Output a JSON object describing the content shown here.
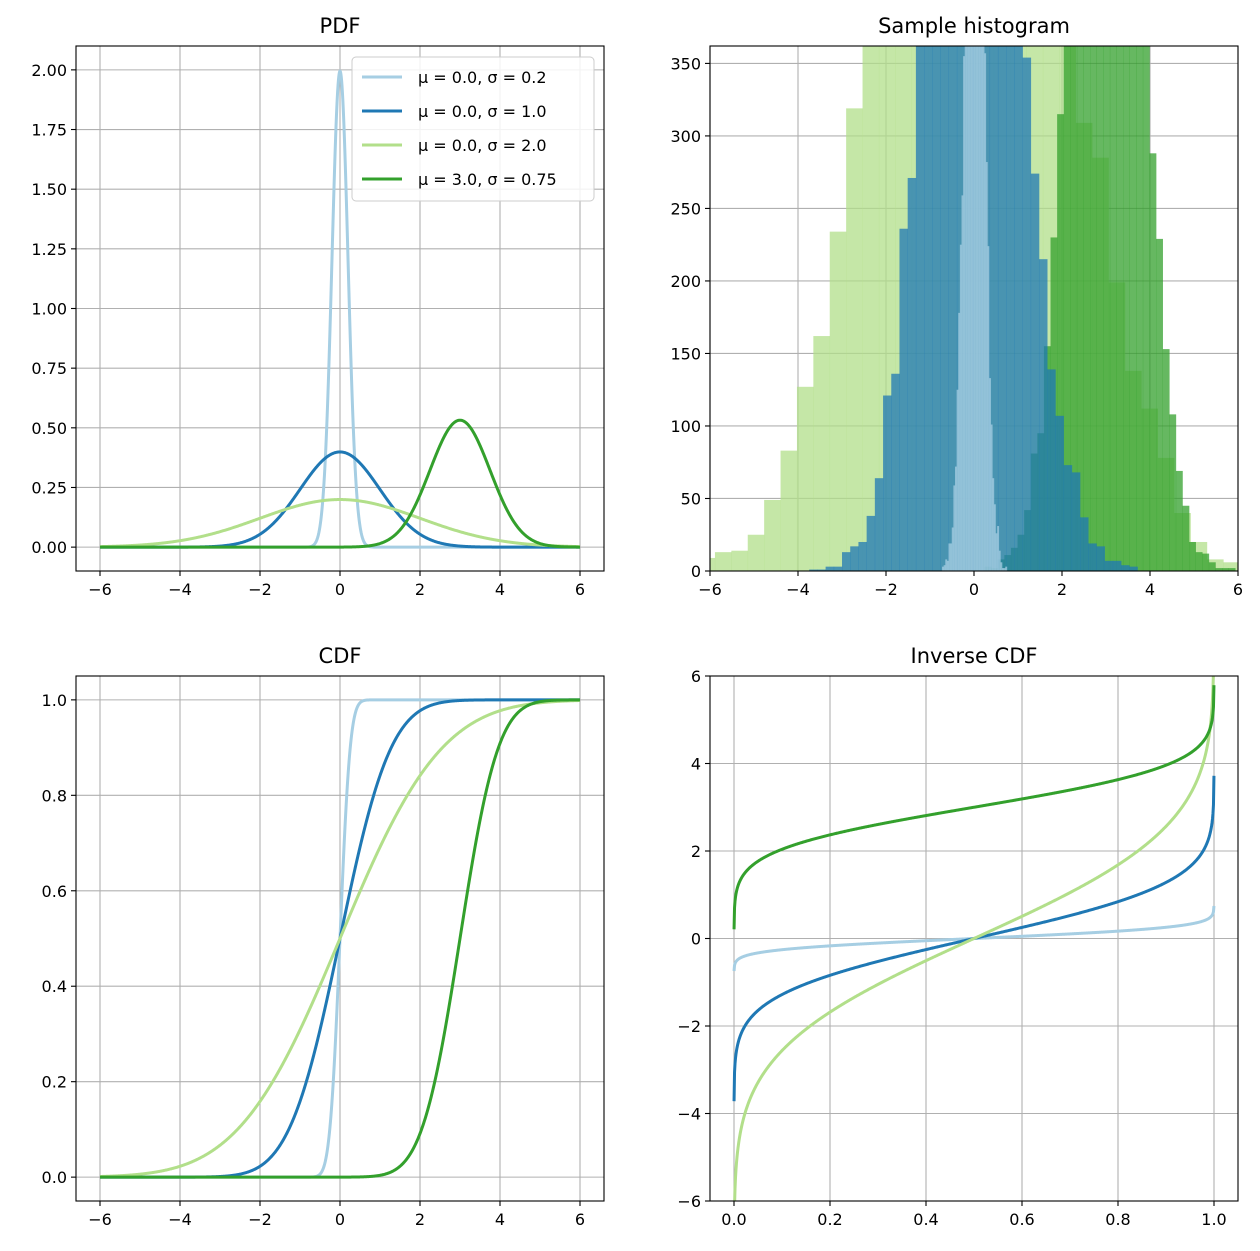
{
  "figure": {
    "background": "#ffffff"
  },
  "chart_data": [
    {
      "id": "pdf",
      "type": "line",
      "title": "PDF",
      "xlabel": "",
      "ylabel": "",
      "xlim": [
        -6.6,
        6.6
      ],
      "ylim": [
        -0.1,
        2.1
      ],
      "xticks": [
        -6,
        -4,
        -2,
        0,
        2,
        4,
        6
      ],
      "xtick_labels": [
        "−6",
        "−4",
        "−2",
        "0",
        "2",
        "4",
        "6"
      ],
      "yticks": [
        0,
        0.25,
        0.5,
        0.75,
        1.0,
        1.25,
        1.5,
        1.75,
        2.0
      ],
      "ytick_labels": [
        "0.00",
        "0.25",
        "0.50",
        "0.75",
        "1.00",
        "1.25",
        "1.50",
        "1.75",
        "2.00"
      ],
      "grid": true,
      "legend_position": "top-right",
      "x_range": [
        -6,
        6
      ],
      "series": [
        {
          "name": "μ = 0.0, σ = 0.2",
          "mu": 0.0,
          "sigma": 0.2,
          "color": "#a6cee3"
        },
        {
          "name": "μ = 0.0, σ = 1.0",
          "mu": 0.0,
          "sigma": 1.0,
          "color": "#1f78b4"
        },
        {
          "name": "μ = 0.0, σ = 2.0",
          "mu": 0.0,
          "sigma": 2.0,
          "color": "#b2df8a"
        },
        {
          "name": "μ = 3.0, σ = 0.75",
          "mu": 3.0,
          "sigma": 0.75,
          "color": "#33a02c"
        }
      ]
    },
    {
      "id": "hist",
      "type": "histogram",
      "title": "Sample histogram",
      "xlabel": "",
      "ylabel": "",
      "xlim": [
        -6,
        6
      ],
      "ylim": [
        0,
        362
      ],
      "xticks": [
        -6,
        -4,
        -2,
        0,
        2,
        4,
        6
      ],
      "xtick_labels": [
        "−6",
        "−4",
        "−2",
        "0",
        "2",
        "4",
        "6"
      ],
      "yticks": [
        0,
        50,
        100,
        150,
        200,
        250,
        300,
        350
      ],
      "ytick_labels": [
        "0",
        "50",
        "100",
        "150",
        "200",
        "250",
        "300",
        "350"
      ],
      "grid": true,
      "bins": 40,
      "samples_per_series": 10000,
      "series": [
        {
          "mu": 0.0,
          "sigma": 2.0,
          "color": "#b2df8a"
        },
        {
          "mu": 3.0,
          "sigma": 0.75,
          "color": "#33a02c"
        },
        {
          "mu": 0.0,
          "sigma": 1.0,
          "color": "#1f78b4"
        },
        {
          "mu": 0.0,
          "sigma": 0.2,
          "color": "#a6cee3"
        }
      ]
    },
    {
      "id": "cdf",
      "type": "line",
      "title": "CDF",
      "xlabel": "",
      "ylabel": "",
      "xlim": [
        -6.6,
        6.6
      ],
      "ylim": [
        -0.05,
        1.05
      ],
      "xticks": [
        -6,
        -4,
        -2,
        0,
        2,
        4,
        6
      ],
      "xtick_labels": [
        "−6",
        "−4",
        "−2",
        "0",
        "2",
        "4",
        "6"
      ],
      "yticks": [
        0,
        0.2,
        0.4,
        0.6,
        0.8,
        1.0
      ],
      "ytick_labels": [
        "0.0",
        "0.2",
        "0.4",
        "0.6",
        "0.8",
        "1.0"
      ],
      "grid": true,
      "x_range": [
        -6,
        6
      ],
      "series": [
        {
          "mu": 0.0,
          "sigma": 0.2,
          "color": "#a6cee3"
        },
        {
          "mu": 0.0,
          "sigma": 1.0,
          "color": "#1f78b4"
        },
        {
          "mu": 0.0,
          "sigma": 2.0,
          "color": "#b2df8a"
        },
        {
          "mu": 3.0,
          "sigma": 0.75,
          "color": "#33a02c"
        }
      ]
    },
    {
      "id": "icdf",
      "type": "line",
      "title": "Inverse CDF",
      "xlabel": "",
      "ylabel": "",
      "xlim": [
        -0.05,
        1.05
      ],
      "ylim": [
        -6,
        6
      ],
      "xticks": [
        0,
        0.2,
        0.4,
        0.6,
        0.8,
        1.0
      ],
      "xtick_labels": [
        "0.0",
        "0.2",
        "0.4",
        "0.6",
        "0.8",
        "1.0"
      ],
      "yticks": [
        -6,
        -4,
        -2,
        0,
        2,
        4,
        6
      ],
      "ytick_labels": [
        "−6",
        "−4",
        "−2",
        "0",
        "2",
        "4",
        "6"
      ],
      "grid": true,
      "p_range": [
        0.0001,
        0.9999
      ],
      "series": [
        {
          "mu": 0.0,
          "sigma": 0.2,
          "color": "#a6cee3"
        },
        {
          "mu": 0.0,
          "sigma": 1.0,
          "color": "#1f78b4"
        },
        {
          "mu": 0.0,
          "sigma": 2.0,
          "color": "#b2df8a"
        },
        {
          "mu": 3.0,
          "sigma": 0.75,
          "color": "#33a02c"
        }
      ]
    }
  ]
}
